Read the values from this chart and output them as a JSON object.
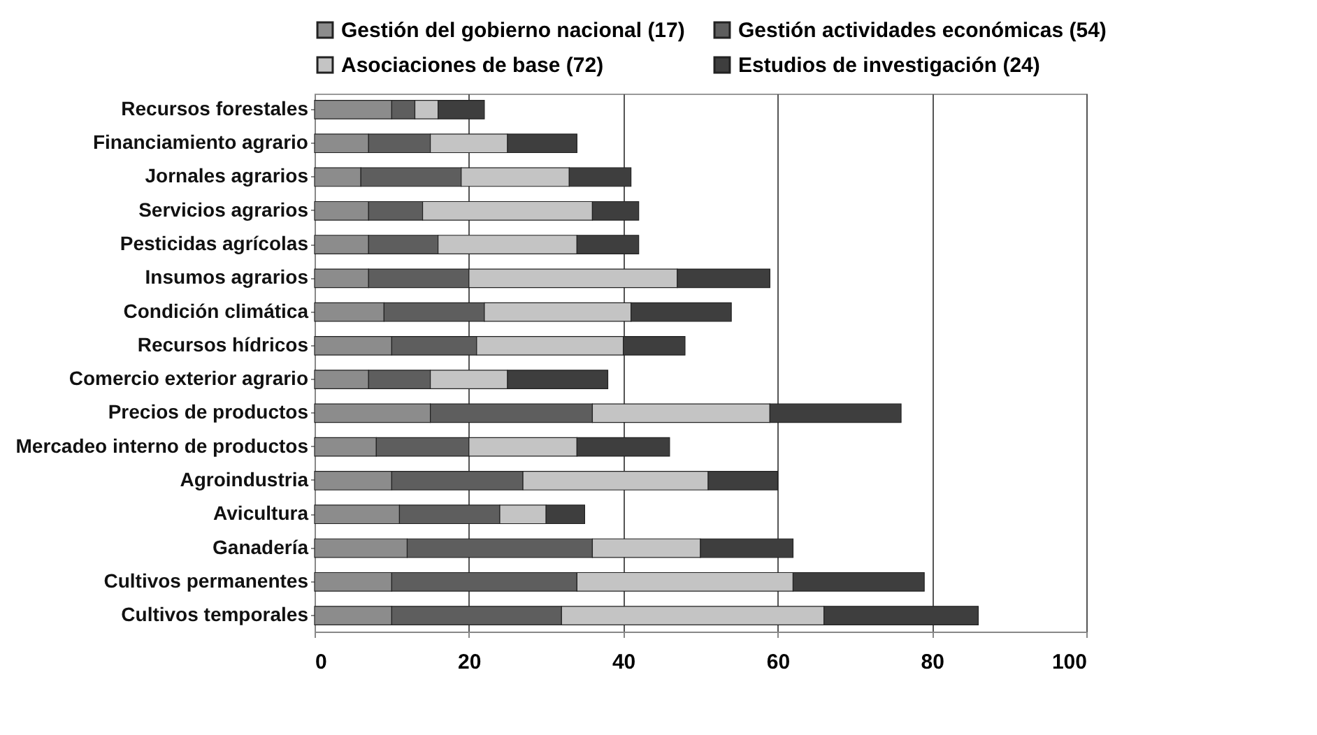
{
  "chart_data": {
    "type": "bar",
    "orientation": "horizontal",
    "stacked": true,
    "categories": [
      "Recursos forestales",
      "Financiamiento agrario",
      "Jornales agrarios",
      "Servicios agrarios",
      "Pesticidas agrícolas",
      "Insumos agrarios",
      "Condición climática",
      "Recursos hídricos",
      "Comercio exterior agrario",
      "Precios de productos",
      "Mercadeo interno de productos",
      "Agroindustria",
      "Avicultura",
      "Ganadería",
      "Cultivos permanentes",
      "Cultivos temporales"
    ],
    "series": [
      {
        "name": "Gestión del gobierno nacional (17)",
        "color": "#8c8c8c",
        "values": [
          10,
          7,
          6,
          7,
          7,
          7,
          9,
          10,
          7,
          15,
          8,
          10,
          11,
          12,
          10,
          10
        ]
      },
      {
        "name": "Gestión actividades económicas (54)",
        "color": "#5e5e5e",
        "values": [
          3,
          8,
          13,
          7,
          9,
          13,
          13,
          11,
          8,
          21,
          12,
          17,
          13,
          24,
          24,
          22
        ]
      },
      {
        "name": "Asociaciones de base (72)",
        "color": "#c4c4c4",
        "values": [
          3,
          10,
          14,
          22,
          18,
          27,
          19,
          19,
          10,
          23,
          14,
          24,
          6,
          14,
          28,
          34
        ]
      },
      {
        "name": "Estudios de investigación (24)",
        "color": "#3e3e3e",
        "values": [
          6,
          9,
          8,
          6,
          8,
          12,
          13,
          8,
          13,
          17,
          12,
          9,
          5,
          12,
          17,
          20
        ]
      }
    ],
    "xlim": [
      0,
      100
    ],
    "xticks": [
      0,
      20,
      40,
      60,
      80,
      100
    ],
    "grid": "x",
    "legend": "top"
  }
}
